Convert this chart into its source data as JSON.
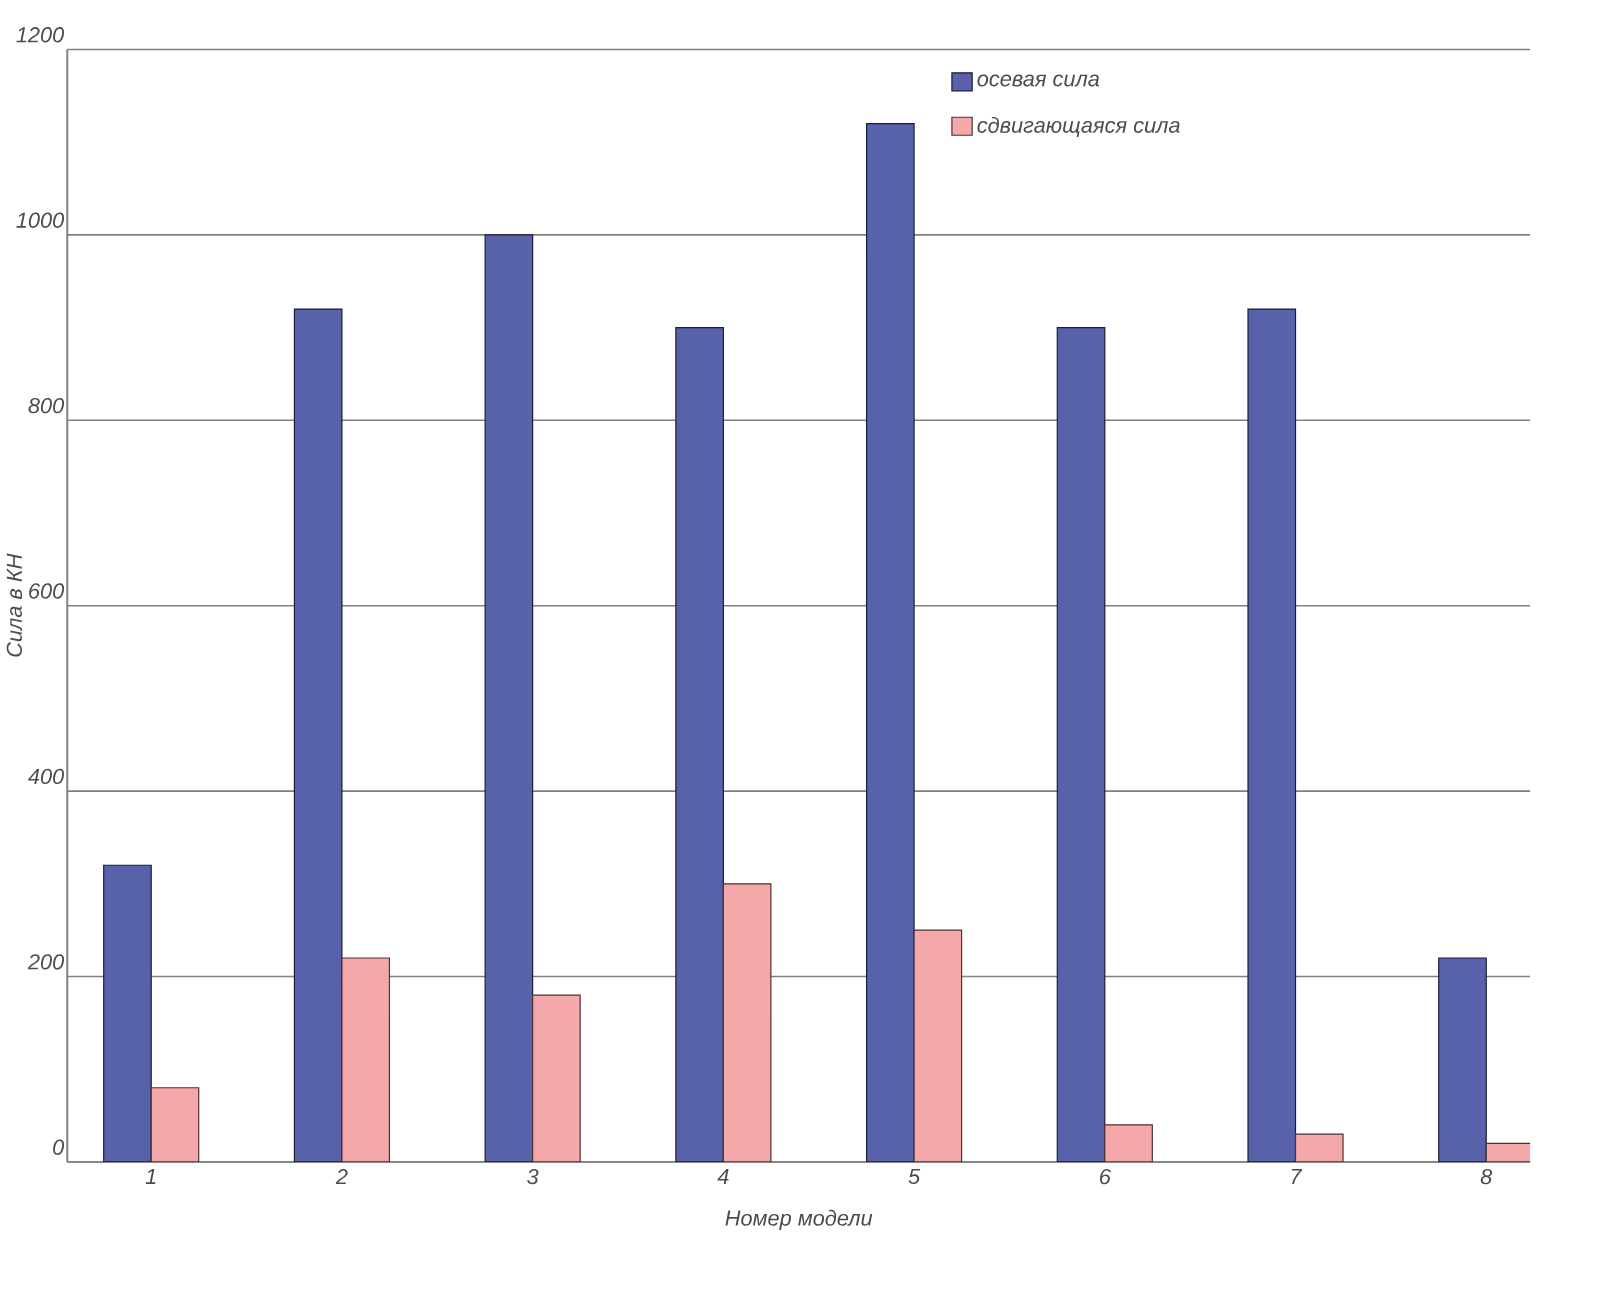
{
  "chart_data": {
    "type": "bar",
    "xlabel": "Номер модели",
    "ylabel": "Сила в КН",
    "categories": [
      "1",
      "2",
      "3",
      "4",
      "5",
      "6",
      "7",
      "8"
    ],
    "series": [
      {
        "name": "осевая сила",
        "color": "#5862ab",
        "values": [
          320,
          920,
          1000,
          900,
          1120,
          900,
          920,
          220
        ]
      },
      {
        "name": "сдвигающаяся сила",
        "color": "#f5a8aa",
        "values": [
          80,
          220,
          180,
          300,
          250,
          40,
          30,
          20
        ]
      }
    ],
    "ylim": [
      0,
      1200
    ],
    "yticks": [
      0,
      200,
      400,
      600,
      800,
      1000,
      1200
    ],
    "grid": "y",
    "legend": "top right"
  }
}
